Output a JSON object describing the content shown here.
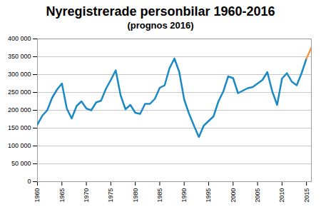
{
  "chart_data": {
    "type": "line",
    "title": "Nyregistrerade personbilar 1960-2016",
    "subtitle": "(prognos 2016)",
    "x": [
      1960,
      1961,
      1962,
      1963,
      1964,
      1965,
      1966,
      1967,
      1968,
      1969,
      1970,
      1971,
      1972,
      1973,
      1974,
      1975,
      1976,
      1977,
      1978,
      1979,
      1980,
      1981,
      1982,
      1983,
      1984,
      1985,
      1986,
      1987,
      1988,
      1989,
      1990,
      1991,
      1992,
      1993,
      1994,
      1995,
      1996,
      1997,
      1998,
      1999,
      2000,
      2001,
      2002,
      2003,
      2004,
      2005,
      2006,
      2007,
      2008,
      2009,
      2010,
      2011,
      2012,
      2013,
      2014,
      2015,
      2016
    ],
    "series": [
      {
        "color": "#1b8ac4",
        "values": [
          160000,
          185000,
          200000,
          235000,
          258000,
          275000,
          205000,
          177000,
          212000,
          225000,
          205000,
          200000,
          222000,
          227000,
          260000,
          285000,
          312000,
          242000,
          203000,
          215000,
          193000,
          190000,
          218000,
          218000,
          232000,
          263000,
          270000,
          318000,
          345000,
          307000,
          230000,
          190000,
          157000,
          125000,
          157000,
          170000,
          183000,
          225000,
          253000,
          295000,
          290000,
          248000,
          255000,
          262000,
          265000,
          275000,
          285000,
          307000,
          253000,
          215000,
          289000,
          304000,
          280000,
          270000,
          304000,
          345000,
          null
        ]
      },
      {
        "color": "#f79646",
        "values": [
          null,
          null,
          null,
          null,
          null,
          null,
          null,
          null,
          null,
          null,
          null,
          null,
          null,
          null,
          null,
          null,
          null,
          null,
          null,
          null,
          null,
          null,
          null,
          null,
          null,
          null,
          null,
          null,
          null,
          null,
          null,
          null,
          null,
          null,
          null,
          null,
          null,
          null,
          null,
          null,
          null,
          null,
          null,
          null,
          null,
          null,
          null,
          null,
          null,
          null,
          null,
          null,
          null,
          null,
          null,
          345000,
          375000
        ]
      }
    ],
    "xlim": [
      1960,
      2016
    ],
    "xticks": [
      1960,
      1965,
      1970,
      1975,
      1980,
      1985,
      1990,
      1995,
      2000,
      2005,
      2010,
      2015
    ],
    "ylim": [
      0,
      400000
    ],
    "yticks": [
      0,
      {
        "value": 50000,
        "label": "50 000"
      },
      {
        "value": 100000,
        "label": "100 000"
      },
      {
        "value": 150000,
        "label": "150 000"
      },
      {
        "value": 200000,
        "label": "200 000"
      },
      {
        "value": 250000,
        "label": "250 000"
      },
      {
        "value": 300000,
        "label": "300 000"
      },
      {
        "value": 350000,
        "label": "350 000"
      },
      {
        "value": 400000,
        "label": "400 000"
      }
    ],
    "grid": true
  }
}
